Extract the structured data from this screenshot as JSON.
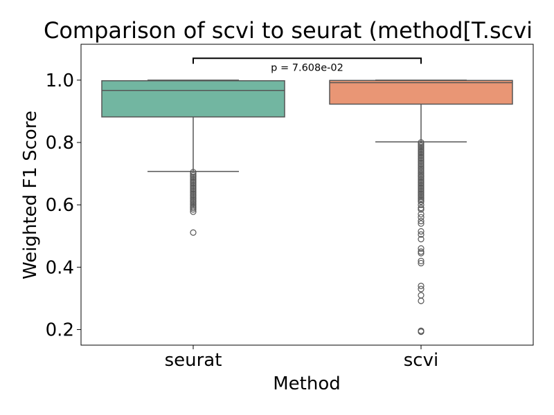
{
  "chart_data": {
    "type": "box",
    "title": "Comparison of scvi to seurat (method[T.scvi",
    "xlabel": "Method",
    "ylabel": "Weighted F1 Score",
    "ylim": [
      0.15,
      1.115
    ],
    "yticks": [
      0.2,
      0.4,
      0.6,
      0.8,
      1.0
    ],
    "ytick_labels": [
      "0.2",
      "0.4",
      "0.6",
      "0.8",
      "1.0"
    ],
    "categories": [
      "seurat",
      "scvi"
    ],
    "grid": false,
    "legend": null,
    "series": [
      {
        "category": "seurat",
        "color": "#72b6a1",
        "whisker_low": 0.707,
        "q1": 0.882,
        "median": 0.967,
        "q3": 0.998,
        "whisker_high": 1.0,
        "outliers": [
          0.705,
          0.7,
          0.695,
          0.69,
          0.685,
          0.68,
          0.675,
          0.67,
          0.665,
          0.66,
          0.655,
          0.65,
          0.645,
          0.64,
          0.635,
          0.63,
          0.625,
          0.62,
          0.615,
          0.61,
          0.605,
          0.6,
          0.595,
          0.59,
          0.585,
          0.578,
          0.511
        ]
      },
      {
        "category": "scvi",
        "color": "#e99675",
        "whisker_low": 0.802,
        "q1": 0.923,
        "median": 0.992,
        "q3": 0.999,
        "whisker_high": 1.0,
        "outliers": [
          0.8,
          0.795,
          0.79,
          0.785,
          0.78,
          0.775,
          0.77,
          0.765,
          0.76,
          0.755,
          0.75,
          0.745,
          0.74,
          0.735,
          0.73,
          0.725,
          0.72,
          0.715,
          0.71,
          0.705,
          0.7,
          0.695,
          0.69,
          0.685,
          0.68,
          0.675,
          0.67,
          0.665,
          0.66,
          0.655,
          0.65,
          0.645,
          0.64,
          0.635,
          0.63,
          0.625,
          0.62,
          0.615,
          0.61,
          0.6,
          0.59,
          0.585,
          0.57,
          0.56,
          0.548,
          0.54,
          0.515,
          0.505,
          0.49,
          0.46,
          0.45,
          0.445,
          0.42,
          0.413,
          0.34,
          0.33,
          0.31,
          0.292,
          0.196,
          0.193
        ]
      }
    ],
    "annotation": {
      "text": "p = 7.608e-02",
      "between": [
        "seurat",
        "scvi"
      ],
      "y": 1.07
    }
  },
  "style": {
    "line_color": "#555555",
    "axis_color": "#000000",
    "bracket_color": "#000000"
  }
}
